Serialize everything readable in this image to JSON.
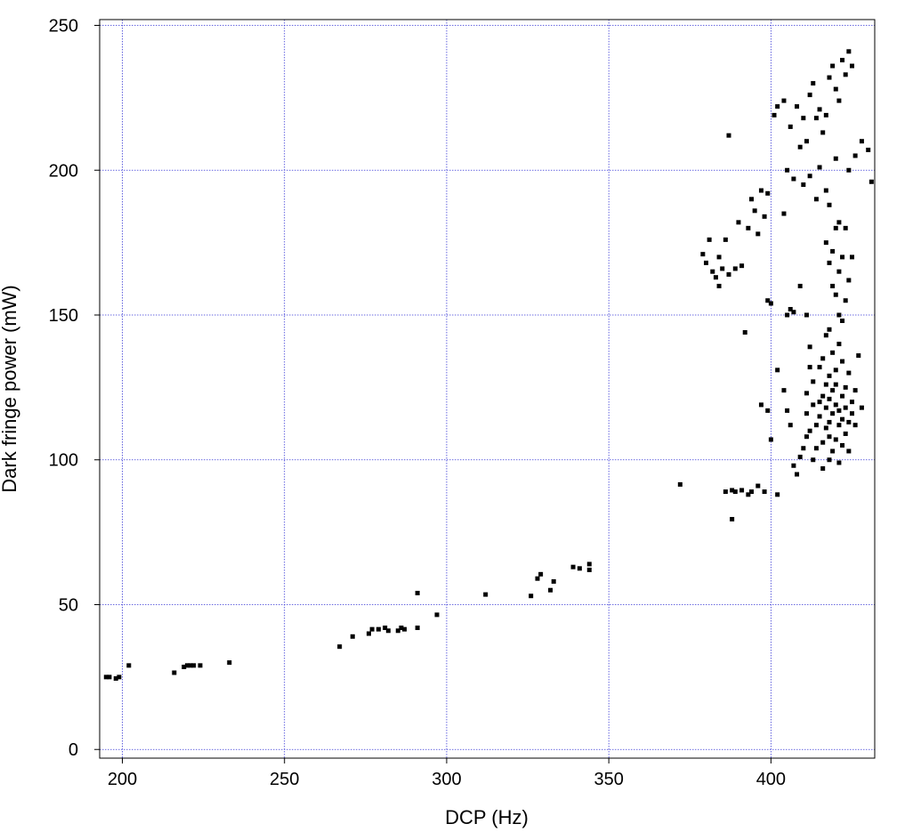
{
  "chart_data": {
    "type": "scatter",
    "title": "",
    "xlabel": "DCP (Hz)",
    "ylabel": "Dark fringe power (mW)",
    "xlim": [
      193,
      432
    ],
    "ylim": [
      -3,
      252
    ],
    "xticks": [
      200,
      250,
      300,
      350,
      400
    ],
    "yticks": [
      0,
      50,
      100,
      150,
      200,
      250
    ],
    "grid": true,
    "grid_color": "#3b3bd6",
    "marker_color": "#000000",
    "marker": "square",
    "series": [
      {
        "points": [
          [
            195,
            25
          ],
          [
            196,
            25
          ],
          [
            198,
            24.5
          ],
          [
            199,
            25
          ],
          [
            202,
            29
          ],
          [
            216,
            26.5
          ],
          [
            219,
            28.5
          ],
          [
            220,
            29
          ],
          [
            221,
            29
          ],
          [
            222,
            29
          ],
          [
            224,
            29
          ],
          [
            233,
            30
          ],
          [
            267,
            35.5
          ],
          [
            271,
            39
          ],
          [
            276,
            40
          ],
          [
            277,
            41.5
          ],
          [
            279,
            41.5
          ],
          [
            281,
            42
          ],
          [
            282,
            41
          ],
          [
            285,
            41
          ],
          [
            286,
            42
          ],
          [
            287,
            41.5
          ],
          [
            291,
            42
          ],
          [
            291,
            54
          ],
          [
            297,
            46.5
          ],
          [
            312,
            53.5
          ],
          [
            326,
            53
          ],
          [
            328,
            59
          ],
          [
            329,
            60.5
          ],
          [
            332,
            55
          ],
          [
            333,
            58
          ],
          [
            339,
            63
          ],
          [
            341,
            62.5
          ],
          [
            344,
            62
          ],
          [
            344,
            64
          ],
          [
            372,
            91.5
          ],
          [
            386,
            89
          ],
          [
            388,
            89.5
          ],
          [
            388,
            79.5
          ],
          [
            389,
            89
          ],
          [
            391,
            89.5
          ],
          [
            393,
            88
          ],
          [
            394,
            89
          ],
          [
            396,
            91
          ],
          [
            398,
            89
          ],
          [
            402,
            88
          ],
          [
            379,
            171
          ],
          [
            380,
            168
          ],
          [
            381,
            176
          ],
          [
            382,
            165
          ],
          [
            383,
            163
          ],
          [
            384,
            170
          ],
          [
            384,
            160
          ],
          [
            385,
            166
          ],
          [
            386,
            176
          ],
          [
            387,
            164
          ],
          [
            387,
            212
          ],
          [
            389,
            166
          ],
          [
            390,
            182
          ],
          [
            391,
            167
          ],
          [
            392,
            144
          ],
          [
            393,
            180
          ],
          [
            394,
            190
          ],
          [
            395,
            186
          ],
          [
            396,
            178
          ],
          [
            397,
            193
          ],
          [
            398,
            184
          ],
          [
            399,
            192
          ],
          [
            399,
            155
          ],
          [
            400,
            154
          ],
          [
            401,
            219
          ],
          [
            402,
            222
          ],
          [
            404,
            185
          ],
          [
            405,
            150
          ],
          [
            406,
            152
          ],
          [
            407,
            151
          ],
          [
            409,
            160
          ],
          [
            411,
            150
          ],
          [
            405,
            200
          ],
          [
            407,
            197
          ],
          [
            410,
            195
          ],
          [
            412,
            198
          ],
          [
            414,
            190
          ],
          [
            415,
            201
          ],
          [
            417,
            193
          ],
          [
            418,
            188
          ],
          [
            420,
            204
          ],
          [
            421,
            182
          ],
          [
            423,
            180
          ],
          [
            424,
            200
          ],
          [
            426,
            205
          ],
          [
            428,
            210
          ],
          [
            430,
            207
          ],
          [
            431,
            196
          ],
          [
            406,
            215
          ],
          [
            408,
            222
          ],
          [
            410,
            218
          ],
          [
            412,
            226
          ],
          [
            413,
            230
          ],
          [
            415,
            221
          ],
          [
            416,
            213
          ],
          [
            417,
            219
          ],
          [
            418,
            232
          ],
          [
            419,
            236
          ],
          [
            420,
            228
          ],
          [
            421,
            224
          ],
          [
            422,
            238
          ],
          [
            423,
            233
          ],
          [
            424,
            241
          ],
          [
            425,
            236
          ],
          [
            414,
            218
          ],
          [
            411,
            210
          ],
          [
            409,
            208
          ],
          [
            404,
            224
          ],
          [
            417,
            175
          ],
          [
            418,
            168
          ],
          [
            419,
            172
          ],
          [
            420,
            180
          ],
          [
            421,
            165
          ],
          [
            422,
            170
          ],
          [
            419,
            160
          ],
          [
            420,
            157
          ],
          [
            421,
            150
          ],
          [
            422,
            148
          ],
          [
            423,
            155
          ],
          [
            424,
            162
          ],
          [
            425,
            170
          ],
          [
            418,
            145
          ],
          [
            397,
            119
          ],
          [
            399,
            117
          ],
          [
            400,
            107
          ],
          [
            402,
            131
          ],
          [
            404,
            124
          ],
          [
            405,
            117
          ],
          [
            406,
            112
          ],
          [
            407,
            98
          ],
          [
            408,
            95
          ],
          [
            409,
            101
          ],
          [
            410,
            104
          ],
          [
            411,
            108
          ],
          [
            411,
            116
          ],
          [
            411,
            123
          ],
          [
            412,
            132
          ],
          [
            412,
            139
          ],
          [
            412,
            110
          ],
          [
            413,
            100
          ],
          [
            413,
            119
          ],
          [
            413,
            127
          ],
          [
            414,
            104
          ],
          [
            414,
            112
          ],
          [
            415,
            115
          ],
          [
            415,
            120
          ],
          [
            415,
            132
          ],
          [
            416,
            97
          ],
          [
            416,
            106
          ],
          [
            416,
            122
          ],
          [
            416,
            135
          ],
          [
            417,
            111
          ],
          [
            417,
            118
          ],
          [
            417,
            126
          ],
          [
            417,
            143
          ],
          [
            418,
            100
          ],
          [
            418,
            108
          ],
          [
            418,
            113
          ],
          [
            418,
            121
          ],
          [
            418,
            129
          ],
          [
            419,
            103
          ],
          [
            419,
            116
          ],
          [
            419,
            124
          ],
          [
            419,
            137
          ],
          [
            420,
            107
          ],
          [
            420,
            119
          ],
          [
            420,
            126
          ],
          [
            420,
            131
          ],
          [
            421,
            99
          ],
          [
            421,
            112
          ],
          [
            421,
            117
          ],
          [
            421,
            140
          ],
          [
            422,
            105
          ],
          [
            422,
            114
          ],
          [
            422,
            122
          ],
          [
            422,
            134
          ],
          [
            423,
            109
          ],
          [
            423,
            118
          ],
          [
            423,
            125
          ],
          [
            424,
            103
          ],
          [
            424,
            113
          ],
          [
            424,
            130
          ],
          [
            425,
            120
          ],
          [
            425,
            116
          ],
          [
            426,
            112
          ],
          [
            426,
            124
          ],
          [
            427,
            136
          ],
          [
            428,
            118
          ]
        ]
      }
    ]
  }
}
